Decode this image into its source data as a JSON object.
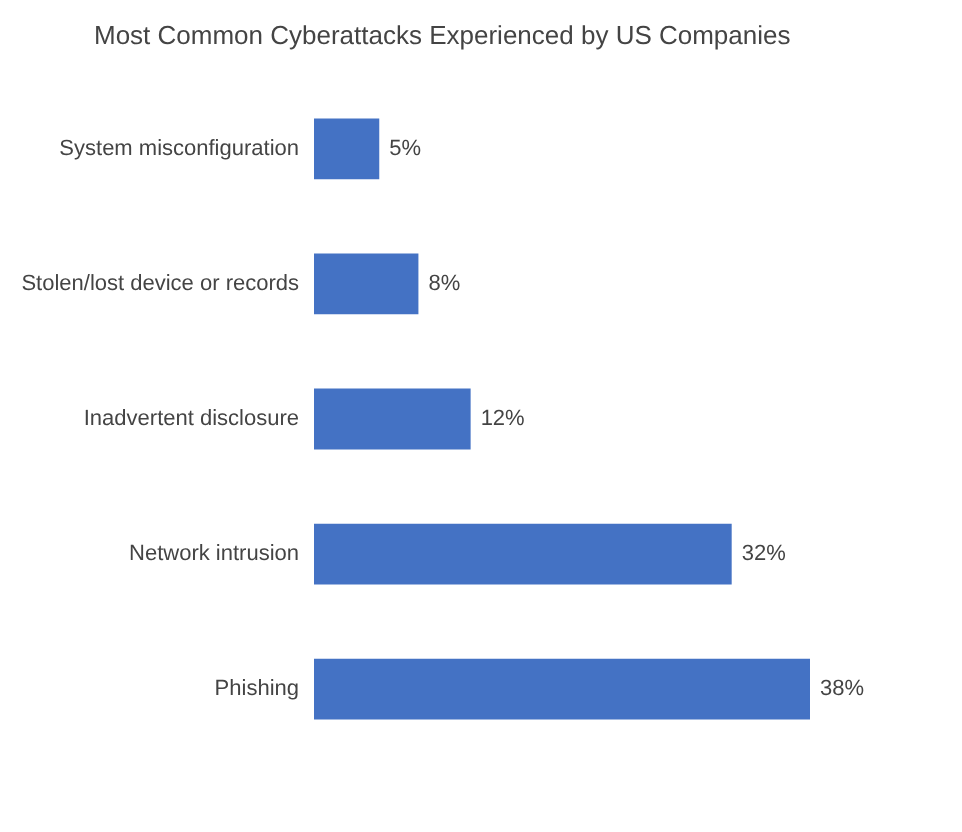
{
  "chart_data": {
    "type": "bar",
    "orientation": "horizontal",
    "title": "Most Common Cyberattacks Experienced by US Companies",
    "categories": [
      "System misconfiguration",
      "Stolen/lost device or records",
      "Inadvertent disclosure",
      "Network intrusion",
      "Phishing"
    ],
    "values": [
      5,
      8,
      12,
      32,
      38
    ],
    "value_labels": [
      "5%",
      "8%",
      "12%",
      "32%",
      "38%"
    ],
    "color": "#4472c4"
  }
}
